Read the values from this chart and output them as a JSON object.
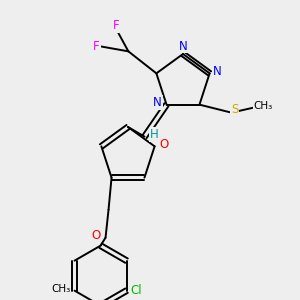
{
  "background_color": "#eeeeee",
  "figsize": [
    3.0,
    3.0
  ],
  "dpi": 100,
  "colors": {
    "F": "#ff00ff",
    "N": "#0000ff",
    "O": "#ff0000",
    "S": "#ccaa00",
    "Cl": "#00bb00",
    "H": "#009999",
    "C": "#000000"
  }
}
